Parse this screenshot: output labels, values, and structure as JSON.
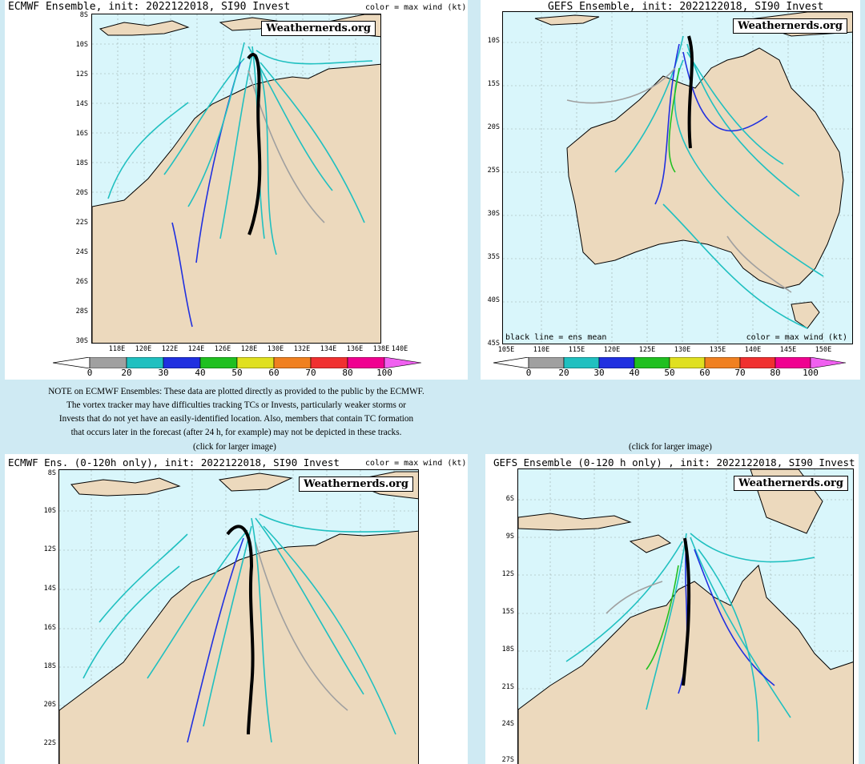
{
  "panels": [
    {
      "title": "ECMWF Ensemble, init: 2022122018, SI90 Invest",
      "right_label": "color = max wind (kt)",
      "brand": "Weathernerds.org",
      "lat_labels": [
        "8S",
        "10S",
        "12S",
        "14S",
        "16S",
        "18S",
        "20S",
        "22S",
        "24S",
        "26S",
        "28S",
        "30S"
      ],
      "lon_labels": [
        "118E",
        "120E",
        "122E",
        "124E",
        "126E",
        "128E",
        "130E",
        "132E",
        "134E",
        "136E",
        "138E",
        "140E"
      ]
    },
    {
      "title": "GEFS Ensemble, init: 2022122018, SI90 Invest",
      "brand": "Weathernerds.org",
      "lat_labels": [
        "10S",
        "15S",
        "20S",
        "25S",
        "30S",
        "35S",
        "40S",
        "45S"
      ],
      "lon_labels": [
        "105E",
        "110E",
        "115E",
        "120E",
        "125E",
        "130E",
        "135E",
        "140E",
        "145E",
        "150E"
      ],
      "bottom_left": "black line = ens mean",
      "bottom_right": "color = max wind (kt)"
    },
    {
      "title": "ECMWF Ens. (0-120h only), init: 2022122018, SI90 Invest",
      "right_label": "color = max wind (kt)",
      "brand": "Weathernerds.org",
      "lat_labels": [
        "8S",
        "10S",
        "12S",
        "14S",
        "16S",
        "18S",
        "20S",
        "22S"
      ]
    },
    {
      "title": "GEFS Ensemble (0-120 h only) , init: 2022122018, SI90 Invest",
      "brand": "Weathernerds.org",
      "lat_labels": [
        "6S",
        "9S",
        "12S",
        "15S",
        "18S",
        "21S",
        "24S",
        "27S"
      ]
    }
  ],
  "colorbar": {
    "labels": [
      "0",
      "20",
      "30",
      "40",
      "50",
      "60",
      "70",
      "80",
      "100"
    ],
    "colors": [
      "#a0a0a0",
      "#20c0c0",
      "#2030e0",
      "#20c020",
      "#e0e020",
      "#f08020",
      "#f03030",
      "#f00090",
      "#f060f0"
    ]
  },
  "note": {
    "lines": [
      "NOTE on ECMWF Ensembles: These data are plotted directly as provided to the public by the ECMWF.",
      "The vortex tracker may have difficulties tracking TCs or Invests, particularly weaker storms or",
      "Invests that do not yet have an easily-identified location. Also, members that contain TC formation",
      "that occurs later in the forecast (after 24 h, for example) may not be depicted in these tracks."
    ]
  },
  "click_left": "(click for larger image)",
  "click_right": "(click for larger image)"
}
